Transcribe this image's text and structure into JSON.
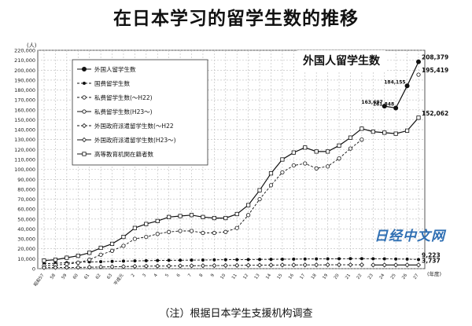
{
  "title": "在日本学习的留学生数的推移",
  "note": "（注）根据日本学生支援机构调查",
  "watermark": "日经中文网",
  "chart_data": {
    "type": "line",
    "title": "外国人留学生数",
    "yunit": "(人)",
    "xunit": "(年度)",
    "ylim": [
      0,
      220000
    ],
    "ytick_step": 10000,
    "grid": true,
    "legend_placement": "top-left",
    "x_labels": [
      "昭和57",
      "58",
      "59",
      "60",
      "61",
      "62",
      "63",
      "平成元",
      "2",
      "3",
      "4",
      "5",
      "6",
      "7",
      "8",
      "9",
      "10",
      "11",
      "12",
      "13",
      "14",
      "15",
      "16",
      "17",
      "18",
      "19",
      "20",
      "21",
      "22",
      "23",
      "24",
      "25",
      "26",
      "27"
    ],
    "series": [
      {
        "name": "外国人留学生数",
        "marker": "filled-circle",
        "dash": "solid",
        "values": [
          null,
          null,
          null,
          null,
          null,
          null,
          null,
          null,
          null,
          null,
          null,
          null,
          null,
          null,
          null,
          null,
          null,
          null,
          null,
          null,
          null,
          null,
          null,
          null,
          null,
          null,
          null,
          null,
          null,
          null,
          163697,
          161848,
          184155,
          208379
        ],
        "labels": [
          null,
          null,
          null,
          null,
          null,
          null,
          null,
          null,
          null,
          null,
          null,
          null,
          null,
          null,
          null,
          null,
          null,
          null,
          null,
          null,
          null,
          null,
          null,
          null,
          null,
          null,
          null,
          null,
          null,
          null,
          "163,697",
          "161,848",
          "184,155",
          "208,379"
        ]
      },
      {
        "name": "国费留学生数",
        "marker": "filled-dot",
        "dash": "dashed",
        "values": [
          5000,
          5500,
          6000,
          6500,
          6800,
          7000,
          7300,
          7600,
          7800,
          8000,
          8200,
          8400,
          8500,
          8600,
          8700,
          8900,
          9000,
          9100,
          9200,
          9300,
          9400,
          9500,
          9600,
          9700,
          9800,
          9900,
          10000,
          10100,
          10100,
          10000,
          9900,
          9700,
          9600,
          9223
        ],
        "labels": [
          null,
          null,
          null,
          null,
          null,
          null,
          null,
          null,
          null,
          null,
          null,
          null,
          null,
          null,
          null,
          null,
          null,
          null,
          null,
          null,
          null,
          null,
          null,
          null,
          null,
          null,
          null,
          null,
          null,
          null,
          null,
          null,
          null,
          "9,223"
        ]
      },
      {
        "name": "私费留学生数(～H22)",
        "marker": "open-circle",
        "dash": "dashed",
        "values": [
          3000,
          3500,
          4500,
          6000,
          9000,
          14000,
          18000,
          23000,
          30000,
          32000,
          35000,
          37000,
          38000,
          38000,
          36000,
          36000,
          37000,
          41000,
          54000,
          70000,
          84000,
          97000,
          104000,
          106000,
          101000,
          103000,
          111000,
          121000,
          130000,
          null,
          null,
          null,
          null,
          null
        ],
        "labels": [
          null,
          null,
          null,
          null,
          null,
          null,
          null,
          null,
          null,
          null,
          null,
          null,
          null,
          null,
          null,
          null,
          null,
          null,
          null,
          null,
          null,
          null,
          null,
          null,
          null,
          null,
          null,
          null,
          null,
          null,
          null,
          null,
          null,
          null
        ]
      },
      {
        "name": "私费留学生数(H23～)",
        "marker": "open-circle",
        "dash": "solid",
        "values": [
          null,
          null,
          null,
          null,
          null,
          null,
          null,
          null,
          null,
          null,
          null,
          null,
          null,
          null,
          null,
          null,
          null,
          null,
          null,
          null,
          null,
          null,
          null,
          null,
          null,
          null,
          null,
          null,
          null,
          null,
          null,
          null,
          null,
          195419
        ],
        "labels": [
          null,
          null,
          null,
          null,
          null,
          null,
          null,
          null,
          null,
          null,
          null,
          null,
          null,
          null,
          null,
          null,
          null,
          null,
          null,
          null,
          null,
          null,
          null,
          null,
          null,
          null,
          null,
          null,
          null,
          null,
          null,
          null,
          null,
          "195,419"
        ]
      },
      {
        "name": "外国政府派遣留学生数(～H22",
        "marker": "open-diamond",
        "dash": "dashed",
        "values": [
          1000,
          1100,
          1200,
          1300,
          1500,
          1700,
          1900,
          2100,
          2300,
          2500,
          2600,
          2700,
          2800,
          2900,
          3000,
          3100,
          3200,
          3300,
          3400,
          3500,
          3600,
          3700,
          3700,
          3800,
          3800,
          3900,
          3900,
          3900,
          3900,
          null,
          null,
          null,
          null,
          null
        ],
        "labels": [
          null,
          null,
          null,
          null,
          null,
          null,
          null,
          null,
          null,
          null,
          null,
          null,
          null,
          null,
          null,
          null,
          null,
          null,
          null,
          null,
          null,
          null,
          null,
          null,
          null,
          null,
          null,
          null,
          null,
          null,
          null,
          null,
          null,
          null
        ]
      },
      {
        "name": "外国政府派遣留学生数(H23～)",
        "marker": "open-diamond",
        "dash": "solid",
        "values": [
          null,
          null,
          null,
          null,
          null,
          null,
          null,
          null,
          null,
          null,
          null,
          null,
          null,
          null,
          null,
          null,
          null,
          null,
          null,
          null,
          null,
          null,
          null,
          null,
          null,
          null,
          null,
          null,
          null,
          3700,
          3700,
          3700,
          3700,
          3737
        ],
        "labels": [
          null,
          null,
          null,
          null,
          null,
          null,
          null,
          null,
          null,
          null,
          null,
          null,
          null,
          null,
          null,
          null,
          null,
          null,
          null,
          null,
          null,
          null,
          null,
          null,
          null,
          null,
          null,
          null,
          null,
          null,
          null,
          null,
          null,
          "3,737"
        ]
      },
      {
        "name": "高等教育机関在籍者数",
        "marker": "open-square",
        "dash": "solid",
        "values": [
          8116,
          9000,
          11000,
          13000,
          16000,
          21000,
          25000,
          32000,
          41000,
          45000,
          48000,
          52000,
          53000,
          54000,
          52000,
          51000,
          51000,
          55000,
          64000,
          79000,
          96000,
          110000,
          117000,
          122000,
          118000,
          118000,
          124000,
          132000,
          141000,
          138000,
          137000,
          136000,
          139000,
          152062
        ],
        "labels": [
          null,
          null,
          null,
          null,
          null,
          null,
          null,
          null,
          null,
          null,
          null,
          null,
          null,
          null,
          null,
          null,
          null,
          null,
          null,
          null,
          null,
          null,
          null,
          null,
          null,
          null,
          null,
          null,
          null,
          null,
          null,
          null,
          null,
          "152,062"
        ]
      }
    ]
  }
}
